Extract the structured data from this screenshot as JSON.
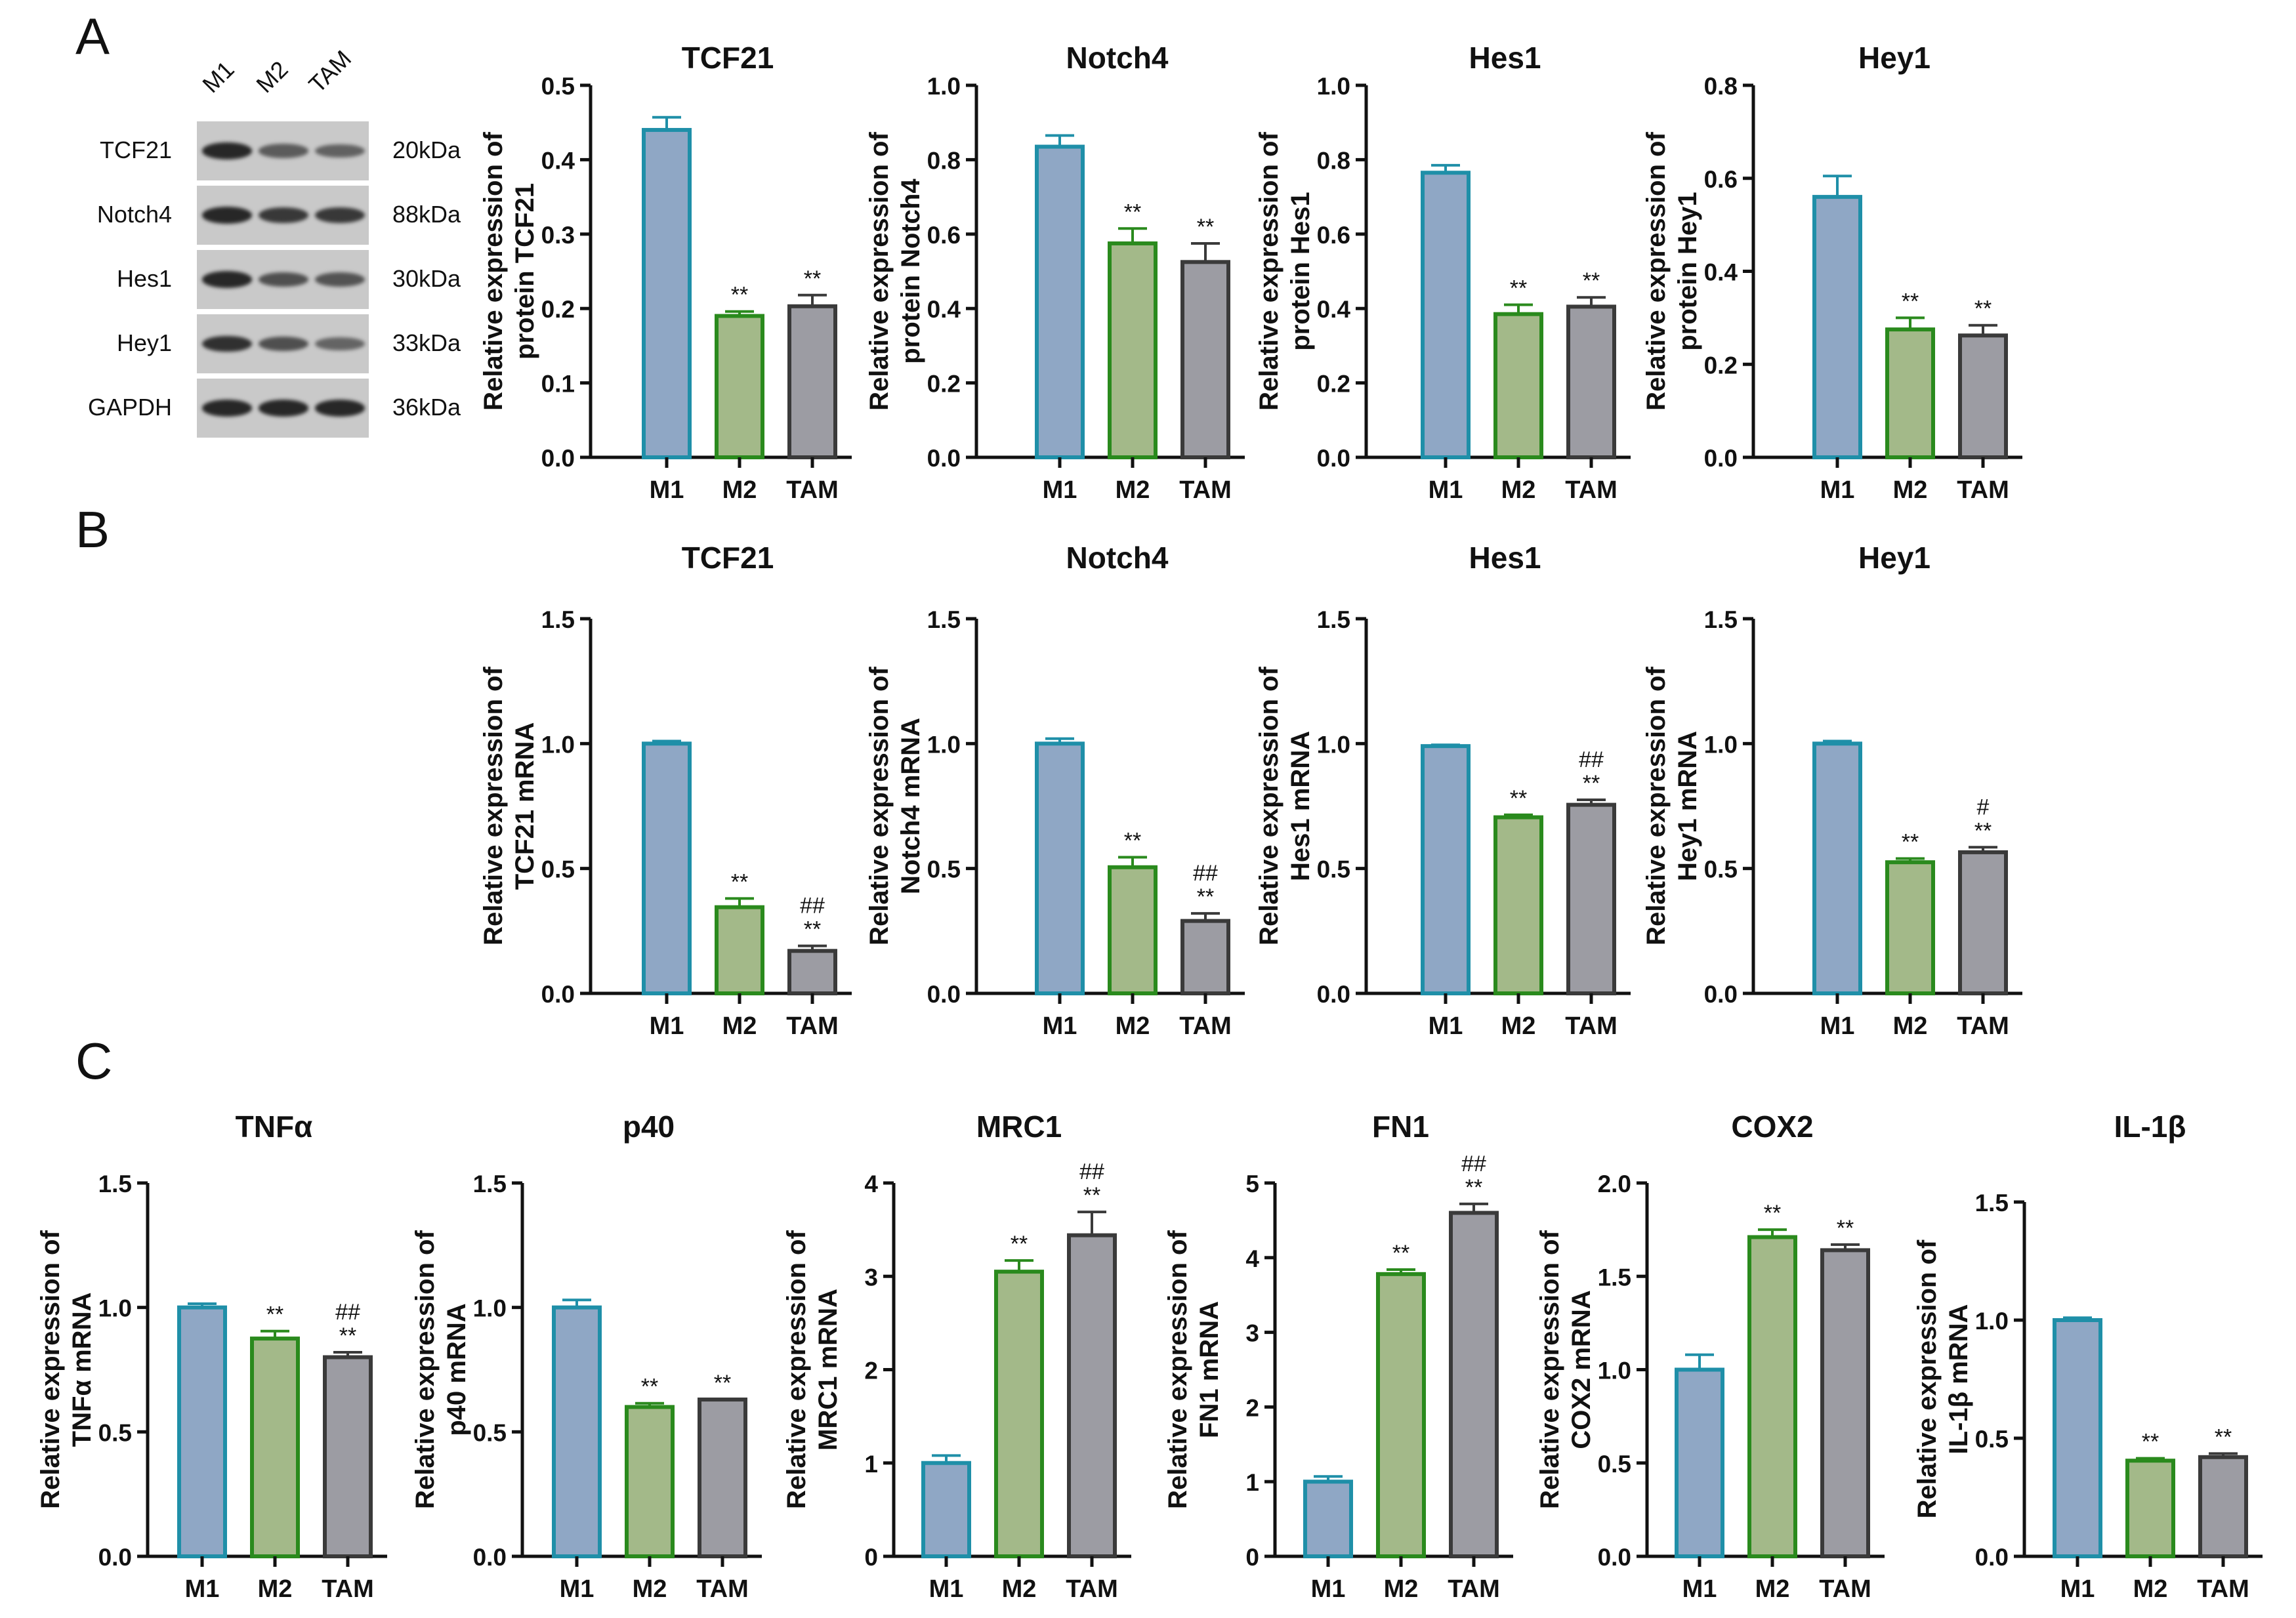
{
  "panels": [
    "A",
    "B",
    "C"
  ],
  "western_blot": {
    "lanes": [
      "M1",
      "M2",
      "TAM"
    ],
    "bands": [
      {
        "name": "TCF21",
        "size": "20kDa",
        "intensity": [
          0.95,
          0.65,
          0.62
        ]
      },
      {
        "name": "Notch4",
        "size": "88kDa",
        "intensity": [
          0.95,
          0.85,
          0.85
        ]
      },
      {
        "name": "Hes1",
        "size": "30kDa",
        "intensity": [
          0.95,
          0.72,
          0.7
        ]
      },
      {
        "name": "Hey1",
        "size": "33kDa",
        "intensity": [
          0.9,
          0.72,
          0.6
        ]
      },
      {
        "name": "GAPDH",
        "size": "36kDa",
        "intensity": [
          0.95,
          0.95,
          0.95
        ]
      }
    ]
  },
  "colors": {
    "M1": "#8fa7c5",
    "M1_edge": "#1f8fa8",
    "M2": "#a3b989",
    "M2_edge": "#2a8a1d",
    "TAM": "#9c9ca3",
    "TAM_edge": "#3a3a3a",
    "axis": "#111111"
  },
  "chart_data": [
    {
      "type": "bar",
      "panel": "A",
      "title": "TCF21",
      "ylabel": [
        "Relative expression of",
        "protein TCF21"
      ],
      "categories": [
        "M1",
        "M2",
        "TAM"
      ],
      "values": [
        0.44,
        0.19,
        0.203
      ],
      "errors": [
        0.017,
        0.006,
        0.015
      ],
      "sig": [
        [],
        [
          "**"
        ],
        [
          "**"
        ]
      ],
      "ylim": [
        0,
        0.5
      ],
      "yticks": [
        "0.0",
        "0.1",
        "0.2",
        "0.3",
        "0.4",
        "0.5"
      ]
    },
    {
      "type": "bar",
      "panel": "A",
      "title": "Notch4",
      "ylabel": [
        "Relative expression of",
        "protein Notch4"
      ],
      "categories": [
        "M1",
        "M2",
        "TAM"
      ],
      "values": [
        0.835,
        0.575,
        0.525
      ],
      "errors": [
        0.03,
        0.04,
        0.05
      ],
      "sig": [
        [],
        [
          "**"
        ],
        [
          "**"
        ]
      ],
      "ylim": [
        0,
        1.0
      ],
      "yticks": [
        "0.0",
        "0.2",
        "0.4",
        "0.6",
        "0.8",
        "1.0"
      ]
    },
    {
      "type": "bar",
      "panel": "A",
      "title": "Hes1",
      "ylabel": [
        "Relative expression of",
        "protein Hes1"
      ],
      "categories": [
        "M1",
        "M2",
        "TAM"
      ],
      "values": [
        0.765,
        0.385,
        0.405
      ],
      "errors": [
        0.02,
        0.025,
        0.025
      ],
      "sig": [
        [],
        [
          "**"
        ],
        [
          "**"
        ]
      ],
      "ylim": [
        0,
        1.0
      ],
      "yticks": [
        "0.0",
        "0.2",
        "0.4",
        "0.6",
        "0.8",
        "1.0"
      ]
    },
    {
      "type": "bar",
      "panel": "A",
      "title": "Hey1",
      "ylabel": [
        "Relative expression of",
        "protein Hey1"
      ],
      "categories": [
        "M1",
        "M2",
        "TAM"
      ],
      "values": [
        0.56,
        0.275,
        0.262
      ],
      "errors": [
        0.045,
        0.025,
        0.022
      ],
      "sig": [
        [],
        [
          "**"
        ],
        [
          "**"
        ]
      ],
      "ylim": [
        0,
        0.8
      ],
      "yticks": [
        "0.0",
        "0.2",
        "0.4",
        "0.6",
        "0.8"
      ]
    },
    {
      "type": "bar",
      "panel": "B",
      "title": "TCF21",
      "ylabel": [
        "Relative expression of",
        "TCF21 mRNA"
      ],
      "categories": [
        "M1",
        "M2",
        "TAM"
      ],
      "values": [
        1.0,
        0.345,
        0.17
      ],
      "errors": [
        0.01,
        0.035,
        0.02
      ],
      "sig": [
        [],
        [
          "**"
        ],
        [
          "##",
          "**"
        ]
      ],
      "ylim": [
        0,
        1.5
      ],
      "yticks": [
        "0.0",
        "0.5",
        "1.0",
        "1.5"
      ]
    },
    {
      "type": "bar",
      "panel": "B",
      "title": "Notch4",
      "ylabel": [
        "Relative expression of",
        "Notch4 mRNA"
      ],
      "categories": [
        "M1",
        "M2",
        "TAM"
      ],
      "values": [
        1.0,
        0.505,
        0.29
      ],
      "errors": [
        0.02,
        0.04,
        0.03
      ],
      "sig": [
        [],
        [
          "**"
        ],
        [
          "##",
          "**"
        ]
      ],
      "ylim": [
        0,
        1.5
      ],
      "yticks": [
        "0.0",
        "0.5",
        "1.0",
        "1.5"
      ]
    },
    {
      "type": "bar",
      "panel": "B",
      "title": "Hes1",
      "ylabel": [
        "Relative expression of",
        "Hes1 mRNA"
      ],
      "categories": [
        "M1",
        "M2",
        "TAM"
      ],
      "values": [
        0.99,
        0.705,
        0.755
      ],
      "errors": [
        0.005,
        0.01,
        0.02
      ],
      "sig": [
        [],
        [
          "**"
        ],
        [
          "##",
          "**"
        ]
      ],
      "ylim": [
        0,
        1.5
      ],
      "yticks": [
        "0.0",
        "0.5",
        "1.0",
        "1.5"
      ]
    },
    {
      "type": "bar",
      "panel": "B",
      "title": "Hey1",
      "ylabel": [
        "Relative expression of",
        "Hey1 mRNA"
      ],
      "categories": [
        "M1",
        "M2",
        "TAM"
      ],
      "values": [
        1.0,
        0.525,
        0.565
      ],
      "errors": [
        0.01,
        0.015,
        0.02
      ],
      "sig": [
        [],
        [
          "**"
        ],
        [
          "#",
          "**"
        ]
      ],
      "ylim": [
        0,
        1.5
      ],
      "yticks": [
        "0.0",
        "0.5",
        "1.0",
        "1.5"
      ]
    },
    {
      "type": "bar",
      "panel": "C",
      "title": "TNFα",
      "ylabel": [
        "Relative expression of",
        "TNFα mRNA"
      ],
      "categories": [
        "M1",
        "M2",
        "TAM"
      ],
      "values": [
        1.0,
        0.875,
        0.8
      ],
      "errors": [
        0.015,
        0.03,
        0.02
      ],
      "sig": [
        [],
        [
          "**"
        ],
        [
          "##",
          "**"
        ]
      ],
      "ylim": [
        0,
        1.5
      ],
      "yticks": [
        "0.0",
        "0.5",
        "1.0",
        "1.5"
      ]
    },
    {
      "type": "bar",
      "panel": "C",
      "title": "p40",
      "ylabel": [
        "Relative expression of",
        "p40 mRNA"
      ],
      "categories": [
        "M1",
        "M2",
        "TAM"
      ],
      "values": [
        1.0,
        0.6,
        0.63
      ],
      "errors": [
        0.03,
        0.015,
        0.0
      ],
      "sig": [
        [],
        [
          "**"
        ],
        [
          "**"
        ]
      ],
      "ylim": [
        0,
        1.5
      ],
      "yticks": [
        "0.0",
        "0.5",
        "1.0",
        "1.5"
      ]
    },
    {
      "type": "bar",
      "panel": "C",
      "title": "MRC1",
      "ylabel": [
        "Relative expression of",
        "MRC1 mRNA"
      ],
      "categories": [
        "M1",
        "M2",
        "TAM"
      ],
      "values": [
        1.0,
        3.05,
        3.44
      ],
      "errors": [
        0.08,
        0.12,
        0.25
      ],
      "sig": [
        [],
        [
          "**"
        ],
        [
          "##",
          "**"
        ]
      ],
      "ylim": [
        0,
        4
      ],
      "yticks": [
        "0",
        "1",
        "2",
        "3",
        "4"
      ]
    },
    {
      "type": "bar",
      "panel": "C",
      "title": "FN1",
      "ylabel": [
        "Relative expression of",
        "FN1 mRNA"
      ],
      "categories": [
        "M1",
        "M2",
        "TAM"
      ],
      "values": [
        1.0,
        3.78,
        4.6
      ],
      "errors": [
        0.07,
        0.06,
        0.12
      ],
      "sig": [
        [],
        [
          "**"
        ],
        [
          "##",
          "**"
        ]
      ],
      "ylim": [
        0,
        5
      ],
      "yticks": [
        "0",
        "1",
        "2",
        "3",
        "4",
        "5"
      ]
    },
    {
      "type": "bar",
      "panel": "C",
      "title": "COX2",
      "ylabel": [
        "Relative expression of",
        "COX2 mRNA"
      ],
      "categories": [
        "M1",
        "M2",
        "TAM"
      ],
      "values": [
        1.0,
        1.71,
        1.64
      ],
      "errors": [
        0.08,
        0.04,
        0.03
      ],
      "sig": [
        [],
        [
          "**"
        ],
        [
          "**"
        ]
      ],
      "ylim": [
        0,
        2.0
      ],
      "yticks": [
        "0.0",
        "0.5",
        "1.0",
        "1.5",
        "2.0"
      ]
    },
    {
      "type": "bar",
      "panel": "C",
      "title": "IL-1β",
      "ylabel": [
        "Relative expression of",
        "IL-1β mRNA"
      ],
      "categories": [
        "M1",
        "M2",
        "TAM"
      ],
      "values": [
        1.0,
        0.405,
        0.42
      ],
      "errors": [
        0.01,
        0.01,
        0.015
      ],
      "sig": [
        [],
        [
          "**"
        ],
        [
          "**"
        ]
      ],
      "ylim": [
        0,
        1.5
      ],
      "yticks": [
        "0.0",
        "0.5",
        "1.0",
        "1.5"
      ]
    }
  ]
}
